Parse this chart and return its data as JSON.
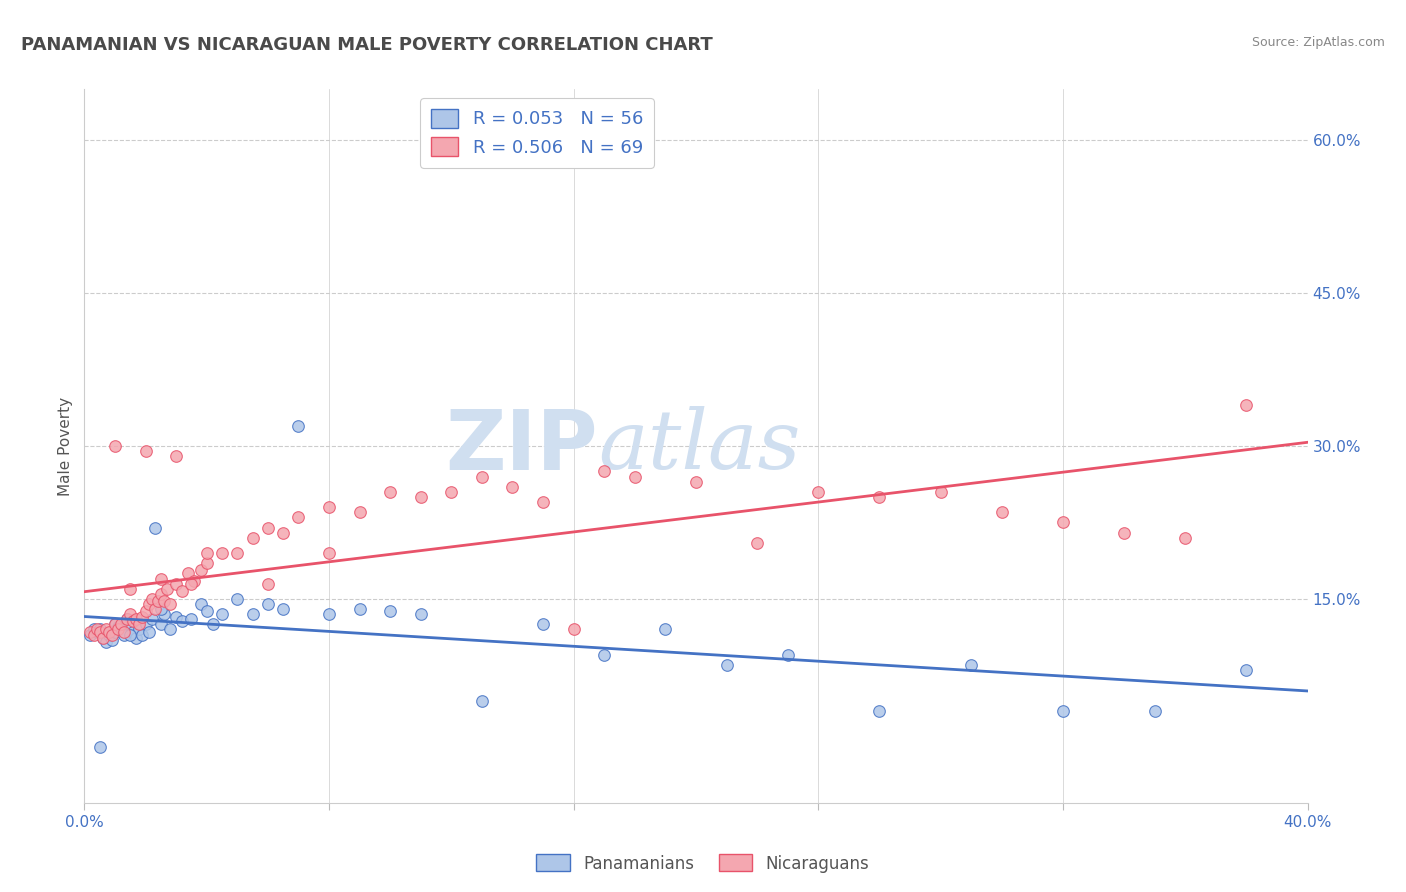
{
  "title": "PANAMANIAN VS NICARAGUAN MALE POVERTY CORRELATION CHART",
  "source_text": "Source: ZipAtlas.com",
  "ylabel": "Male Poverty",
  "xlim": [
    0.0,
    0.4
  ],
  "ylim": [
    -0.05,
    0.65
  ],
  "right_yticks": [
    0.15,
    0.3,
    0.45,
    0.6
  ],
  "right_yticklabels": [
    "15.0%",
    "30.0%",
    "45.0%",
    "60.0%"
  ],
  "xticks": [
    0.0,
    0.08,
    0.16,
    0.24,
    0.32,
    0.4
  ],
  "xticklabels": [
    "0.0%",
    "",
    "",
    "",
    "",
    "40.0%"
  ],
  "pan_R": 0.053,
  "pan_N": 56,
  "nic_R": 0.506,
  "nic_N": 69,
  "pan_color": "#aec6e8",
  "pan_line_color": "#4472c4",
  "nic_color": "#f4a7b0",
  "nic_line_color": "#e8536a",
  "legend_pan_label": "Panamanians",
  "legend_nic_label": "Nicaraguans",
  "background_color": "#ffffff",
  "title_color": "#4a4a4a",
  "source_color": "#888888",
  "axis_label_color": "#555555",
  "tick_color": "#4472c4",
  "watermark_color": "#d0dff0",
  "pan_scatter_x": [
    0.002,
    0.003,
    0.004,
    0.005,
    0.006,
    0.007,
    0.008,
    0.009,
    0.01,
    0.01,
    0.011,
    0.012,
    0.013,
    0.014,
    0.015,
    0.016,
    0.017,
    0.018,
    0.019,
    0.02,
    0.021,
    0.022,
    0.023,
    0.025,
    0.026,
    0.028,
    0.03,
    0.032,
    0.035,
    0.038,
    0.04,
    0.042,
    0.045,
    0.05,
    0.055,
    0.06,
    0.065,
    0.07,
    0.08,
    0.09,
    0.1,
    0.11,
    0.13,
    0.15,
    0.17,
    0.19,
    0.21,
    0.23,
    0.26,
    0.29,
    0.32,
    0.35,
    0.38,
    0.005,
    0.015,
    0.025
  ],
  "pan_scatter_y": [
    0.115,
    0.12,
    0.118,
    0.005,
    0.112,
    0.108,
    0.115,
    0.11,
    0.125,
    0.118,
    0.122,
    0.12,
    0.115,
    0.13,
    0.125,
    0.118,
    0.112,
    0.12,
    0.115,
    0.125,
    0.118,
    0.13,
    0.22,
    0.125,
    0.135,
    0.12,
    0.132,
    0.128,
    0.13,
    0.145,
    0.138,
    0.125,
    0.135,
    0.15,
    0.135,
    0.145,
    0.14,
    0.32,
    0.135,
    0.14,
    0.138,
    0.135,
    0.05,
    0.125,
    0.095,
    0.12,
    0.085,
    0.095,
    0.04,
    0.085,
    0.04,
    0.04,
    0.08,
    0.12,
    0.115,
    0.14
  ],
  "nic_scatter_x": [
    0.002,
    0.003,
    0.004,
    0.005,
    0.006,
    0.007,
    0.008,
    0.009,
    0.01,
    0.011,
    0.012,
    0.013,
    0.014,
    0.015,
    0.016,
    0.017,
    0.018,
    0.019,
    0.02,
    0.021,
    0.022,
    0.023,
    0.024,
    0.025,
    0.026,
    0.027,
    0.028,
    0.03,
    0.032,
    0.034,
    0.036,
    0.038,
    0.04,
    0.045,
    0.05,
    0.055,
    0.06,
    0.065,
    0.07,
    0.08,
    0.09,
    0.1,
    0.11,
    0.12,
    0.13,
    0.14,
    0.15,
    0.16,
    0.17,
    0.18,
    0.2,
    0.22,
    0.24,
    0.26,
    0.28,
    0.3,
    0.32,
    0.34,
    0.36,
    0.38,
    0.01,
    0.02,
    0.03,
    0.04,
    0.06,
    0.08,
    0.015,
    0.025,
    0.035
  ],
  "nic_scatter_y": [
    0.118,
    0.115,
    0.12,
    0.118,
    0.112,
    0.12,
    0.118,
    0.115,
    0.125,
    0.12,
    0.125,
    0.118,
    0.13,
    0.135,
    0.128,
    0.13,
    0.125,
    0.132,
    0.138,
    0.145,
    0.15,
    0.14,
    0.148,
    0.155,
    0.148,
    0.16,
    0.145,
    0.165,
    0.158,
    0.175,
    0.168,
    0.178,
    0.185,
    0.195,
    0.195,
    0.21,
    0.22,
    0.215,
    0.23,
    0.24,
    0.235,
    0.255,
    0.25,
    0.255,
    0.27,
    0.26,
    0.245,
    0.12,
    0.275,
    0.27,
    0.265,
    0.205,
    0.255,
    0.25,
    0.255,
    0.235,
    0.225,
    0.215,
    0.21,
    0.34,
    0.3,
    0.295,
    0.29,
    0.195,
    0.165,
    0.195,
    0.16,
    0.17,
    0.165
  ]
}
